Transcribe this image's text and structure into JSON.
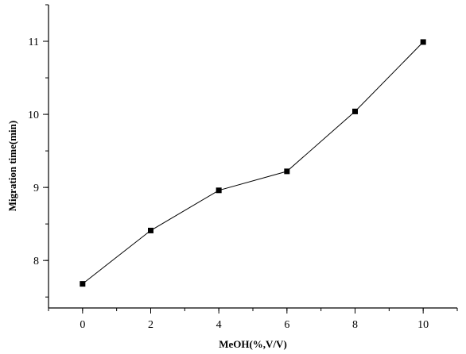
{
  "chart_data": {
    "type": "line",
    "title": "",
    "xlabel": "MeOH(%,V/V)",
    "ylabel": "Migration time(min)",
    "xlim": [
      -1,
      11
    ],
    "ylim": [
      7.35,
      11.5
    ],
    "xticks": [
      0,
      2,
      4,
      6,
      8,
      10
    ],
    "yticks": [
      8,
      9,
      10,
      11
    ],
    "x_minor_step": 1,
    "y_minor_step": 0.5,
    "grid": false,
    "marker": "square",
    "series": [
      {
        "x": [
          0,
          2,
          4,
          6,
          8,
          10
        ],
        "y": [
          7.68,
          8.41,
          8.96,
          9.22,
          10.04,
          10.99
        ]
      }
    ]
  }
}
